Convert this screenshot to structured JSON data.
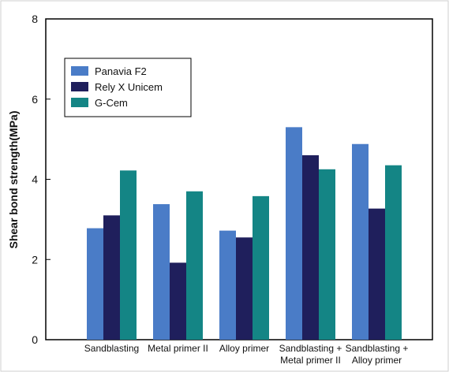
{
  "chart_data": {
    "type": "bar",
    "title": "",
    "xlabel": "",
    "ylabel": "Shear bond strength(MPa)",
    "ylim": [
      0,
      8
    ],
    "yticks": [
      0,
      2,
      4,
      6,
      8
    ],
    "grid": false,
    "legend_position": "top-left",
    "categories": [
      [
        "Sandblasting"
      ],
      [
        "Metal primer II"
      ],
      [
        "Alloy primer"
      ],
      [
        "Sandblasting +",
        "Metal primer II"
      ],
      [
        "Sandblasting +",
        "Alloy  primer"
      ]
    ],
    "series": [
      {
        "name": "Panavia F2",
        "color": "#4a7cc7",
        "values": [
          2.78,
          3.38,
          2.72,
          5.3,
          4.88
        ]
      },
      {
        "name": "Rely X Unicem",
        "color": "#1f1f5c",
        "values": [
          3.1,
          1.92,
          2.55,
          4.6,
          3.27
        ]
      },
      {
        "name": "G-Cem",
        "color": "#148585",
        "values": [
          4.22,
          3.7,
          3.58,
          4.25,
          4.35
        ]
      }
    ]
  }
}
